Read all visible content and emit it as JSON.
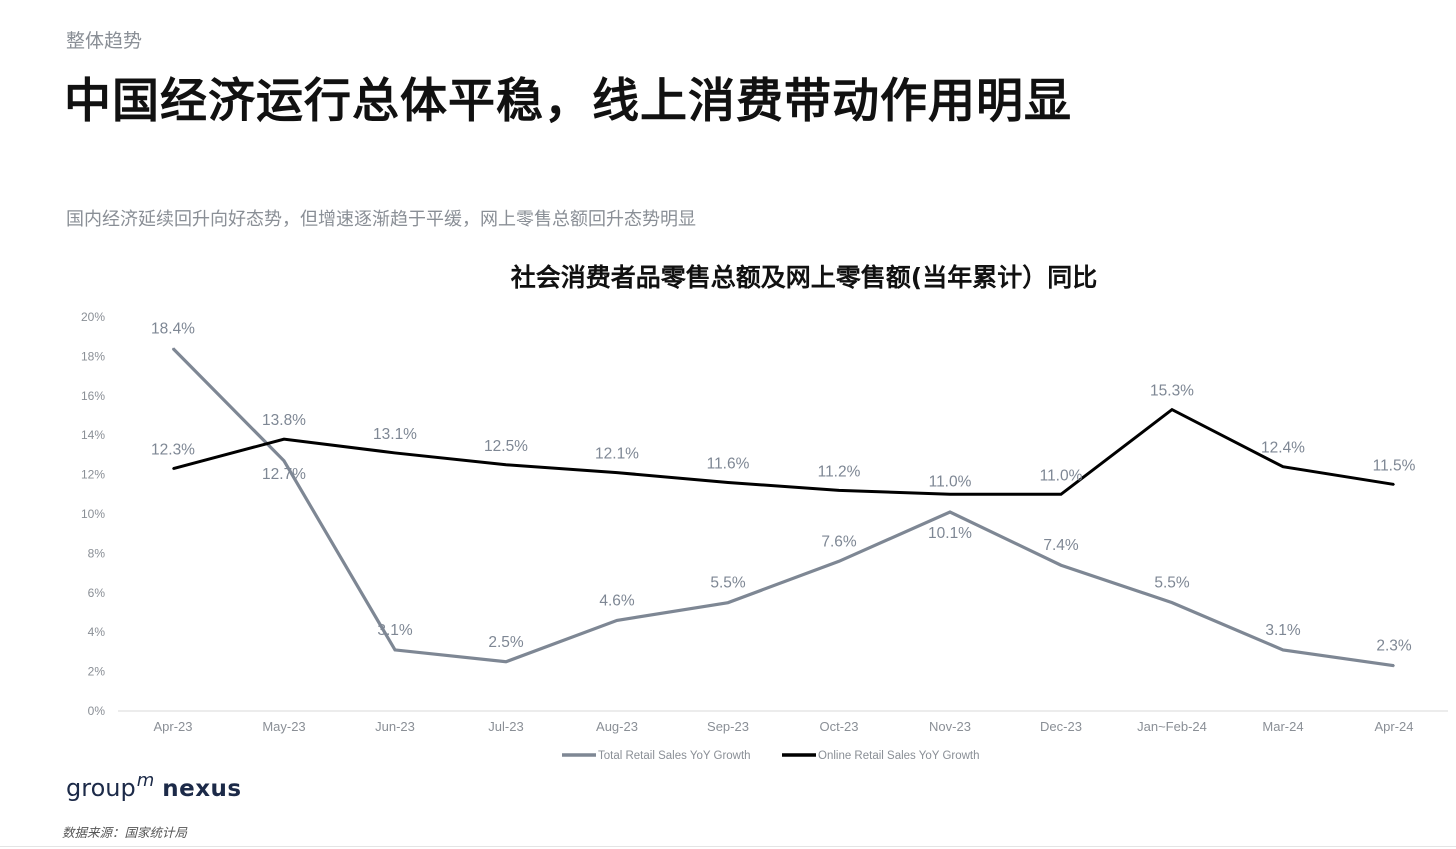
{
  "header": {
    "section_label": "整体趋势",
    "headline": "中国经济运行总体平稳，线上消费带动作用明显",
    "subtitle": "国内经济延续回升向好态势，但增速逐渐趋于平缓，网上零售总额回升态势明显"
  },
  "chart_data": {
    "type": "line",
    "title": "社会消费者品零售总额及网上零售额(当年累计）同比",
    "categories": [
      "Apr-23",
      "May-23",
      "Jun-23",
      "Jul-23",
      "Aug-23",
      "Sep-23",
      "Oct-23",
      "Nov-23",
      "Dec-23",
      "Jan~Feb-24",
      "Mar-24",
      "Apr-24"
    ],
    "yticks": [
      "0%",
      "2%",
      "4%",
      "6%",
      "8%",
      "10%",
      "12%",
      "14%",
      "16%",
      "18%",
      "20%"
    ],
    "ylim": [
      0,
      20
    ],
    "grid": false,
    "legend_position": "bottom",
    "series": [
      {
        "name": "Total Retail Sales YoY Growth",
        "color": "#7e8794",
        "values": [
          18.4,
          12.7,
          3.1,
          2.5,
          4.6,
          5.5,
          7.6,
          10.1,
          7.4,
          5.5,
          3.1,
          2.3
        ],
        "labels": [
          "18.4%",
          "12.7%",
          "3.1%",
          "2.5%",
          "4.6%",
          "5.5%",
          "7.6%",
          "10.1%",
          "7.4%",
          "5.5%",
          "3.1%",
          "2.3%"
        ]
      },
      {
        "name": "Online Retail Sales YoY Growth",
        "color": "#000000",
        "values": [
          12.3,
          13.8,
          13.1,
          12.5,
          12.1,
          11.6,
          11.2,
          11.0,
          11.0,
          15.3,
          12.4,
          11.5
        ],
        "labels": [
          "12.3%",
          "13.8%",
          "13.1%",
          "12.5%",
          "12.1%",
          "11.6%",
          "11.2%",
          "11.0%",
          "11.0%",
          "15.3%",
          "12.4%",
          "11.5%"
        ]
      }
    ]
  },
  "footer": {
    "brand_group": "group",
    "brand_m": "m",
    "brand_nexus": "nexus",
    "source": "数据来源：国家统计局"
  }
}
